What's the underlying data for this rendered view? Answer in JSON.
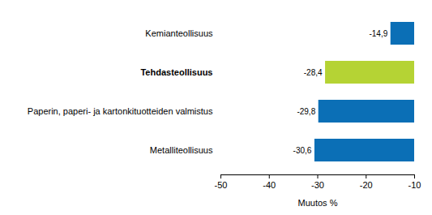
{
  "chart_data": {
    "type": "bar",
    "orientation": "horizontal",
    "categories": [
      "Kemianteollisuus",
      "Tehdasteollisuus",
      "Paperin, paperi- ja kartonkituotteiden valmistus",
      "Metalliteollisuus"
    ],
    "values": [
      -14.9,
      -28.4,
      -29.8,
      -30.6
    ],
    "value_labels": [
      "-14,9",
      "-28,4",
      "-29,8",
      "-30,6"
    ],
    "colors": [
      "#0b6fb6",
      "#b5d334",
      "#0b6fb6",
      "#0b6fb6"
    ],
    "data_labels": true,
    "xlabel": "Muutos %",
    "xlim": [
      -50,
      -10
    ],
    "xticks": [
      -50,
      -40,
      -30,
      -20,
      -10
    ],
    "grid": false
  }
}
